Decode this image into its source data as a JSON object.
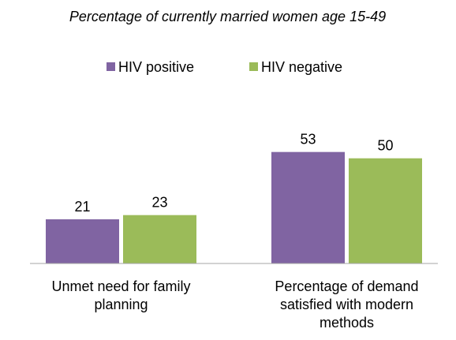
{
  "chart_data": {
    "type": "bar",
    "title": "Percentage of currently married women age 15-49",
    "categories": [
      "Unmet need for family planning",
      "Percentage of demand satisfied with modern methods"
    ],
    "series": [
      {
        "name": "HIV positive",
        "color": "#8064a2",
        "values": [
          21,
          53
        ]
      },
      {
        "name": "HIV negative",
        "color": "#9bbb59",
        "values": [
          23,
          50
        ]
      }
    ],
    "ylim": [
      0,
      60
    ],
    "legend": "top"
  }
}
